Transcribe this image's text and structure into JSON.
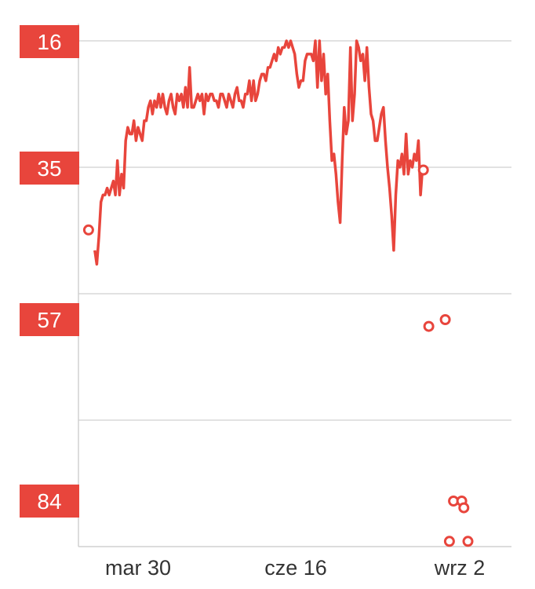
{
  "chart_data": {
    "type": "line",
    "title": "",
    "xlabel": "",
    "ylabel": "",
    "y_axis": {
      "inverted": true,
      "labels": [
        "16",
        "35",
        "57",
        "84"
      ]
    },
    "x_axis": {
      "labels": [
        "mar 30",
        "cze 16",
        "wrz 2"
      ]
    },
    "grid": true,
    "colors": {
      "line": "#e8453c",
      "label_bg": "#e8453c",
      "grid": "#d9d9d9"
    },
    "series": [
      {
        "style": "line-with-end-markers",
        "points": [
          [
            "2015-03-09",
            47
          ],
          [
            "2015-03-10",
            49
          ],
          [
            "2015-03-11",
            45
          ],
          [
            "2015-03-12",
            40
          ],
          [
            "2015-03-13",
            39
          ],
          [
            "2015-03-14",
            39
          ],
          [
            "2015-03-15",
            38
          ],
          [
            "2015-03-16",
            39
          ],
          [
            "2015-03-17",
            38
          ],
          [
            "2015-03-18",
            37
          ],
          [
            "2015-03-19",
            39
          ],
          [
            "2015-03-20",
            34
          ],
          [
            "2015-03-21",
            39
          ],
          [
            "2015-03-22",
            36
          ],
          [
            "2015-03-23",
            38
          ],
          [
            "2015-03-24",
            31
          ],
          [
            "2015-03-25",
            29
          ],
          [
            "2015-03-26",
            30
          ],
          [
            "2015-03-27",
            30
          ],
          [
            "2015-03-28",
            28
          ],
          [
            "2015-03-29",
            31
          ],
          [
            "2015-03-30",
            29
          ],
          [
            "2015-03-31",
            30
          ],
          [
            "2015-04-01",
            31
          ],
          [
            "2015-04-02",
            28
          ],
          [
            "2015-04-03",
            28
          ],
          [
            "2015-04-04",
            26
          ],
          [
            "2015-04-05",
            25
          ],
          [
            "2015-04-06",
            27
          ],
          [
            "2015-04-07",
            25
          ],
          [
            "2015-04-08",
            26
          ],
          [
            "2015-04-09",
            24
          ],
          [
            "2015-04-10",
            26
          ],
          [
            "2015-04-11",
            24
          ],
          [
            "2015-04-12",
            26
          ],
          [
            "2015-04-13",
            27
          ],
          [
            "2015-04-14",
            25
          ],
          [
            "2015-04-15",
            24
          ],
          [
            "2015-04-16",
            26
          ],
          [
            "2015-04-17",
            27
          ],
          [
            "2015-04-18",
            24
          ],
          [
            "2015-04-19",
            25
          ],
          [
            "2015-04-20",
            24
          ],
          [
            "2015-04-21",
            26
          ],
          [
            "2015-04-22",
            23
          ],
          [
            "2015-04-23",
            26
          ],
          [
            "2015-04-24",
            20
          ],
          [
            "2015-04-25",
            26
          ],
          [
            "2015-04-26",
            26
          ],
          [
            "2015-04-27",
            25
          ],
          [
            "2015-04-28",
            24
          ],
          [
            "2015-04-29",
            25
          ],
          [
            "2015-04-30",
            24
          ],
          [
            "2015-05-01",
            27
          ],
          [
            "2015-05-02",
            24
          ],
          [
            "2015-05-03",
            25
          ],
          [
            "2015-05-04",
            24
          ],
          [
            "2015-05-05",
            24
          ],
          [
            "2015-05-06",
            25
          ],
          [
            "2015-05-07",
            25
          ],
          [
            "2015-05-08",
            26
          ],
          [
            "2015-05-09",
            24
          ],
          [
            "2015-05-10",
            24
          ],
          [
            "2015-05-11",
            25
          ],
          [
            "2015-05-12",
            26
          ],
          [
            "2015-05-13",
            24
          ],
          [
            "2015-05-14",
            25
          ],
          [
            "2015-05-15",
            26
          ],
          [
            "2015-05-16",
            24
          ],
          [
            "2015-05-17",
            23
          ],
          [
            "2015-05-18",
            25
          ],
          [
            "2015-05-19",
            25
          ],
          [
            "2015-05-20",
            26
          ],
          [
            "2015-05-21",
            24
          ],
          [
            "2015-05-22",
            24
          ],
          [
            "2015-05-23",
            22
          ],
          [
            "2015-05-24",
            25
          ],
          [
            "2015-05-25",
            22
          ],
          [
            "2015-05-26",
            25
          ],
          [
            "2015-05-27",
            24
          ],
          [
            "2015-05-28",
            22
          ],
          [
            "2015-05-29",
            21
          ],
          [
            "2015-05-30",
            21
          ],
          [
            "2015-05-31",
            22
          ],
          [
            "2015-06-01",
            20
          ],
          [
            "2015-06-02",
            20
          ],
          [
            "2015-06-03",
            19
          ],
          [
            "2015-06-04",
            18
          ],
          [
            "2015-06-05",
            19
          ],
          [
            "2015-06-06",
            17
          ],
          [
            "2015-06-07",
            18
          ],
          [
            "2015-06-08",
            17
          ],
          [
            "2015-06-09",
            17
          ],
          [
            "2015-06-10",
            16
          ],
          [
            "2015-06-11",
            17
          ],
          [
            "2015-06-12",
            16
          ],
          [
            "2015-06-13",
            17
          ],
          [
            "2015-06-14",
            18
          ],
          [
            "2015-06-15",
            21
          ],
          [
            "2015-06-16",
            23
          ],
          [
            "2015-06-17",
            22
          ],
          [
            "2015-06-18",
            22
          ],
          [
            "2015-06-19",
            19
          ],
          [
            "2015-06-20",
            18
          ],
          [
            "2015-06-21",
            18
          ],
          [
            "2015-06-22",
            18
          ],
          [
            "2015-06-23",
            19
          ],
          [
            "2015-06-24",
            16
          ],
          [
            "2015-06-25",
            23
          ],
          [
            "2015-06-26",
            16
          ],
          [
            "2015-06-27",
            22
          ],
          [
            "2015-06-28",
            18
          ],
          [
            "2015-06-29",
            24
          ],
          [
            "2015-06-30",
            21
          ],
          [
            "2015-07-01",
            28
          ],
          [
            "2015-07-02",
            34
          ],
          [
            "2015-07-03",
            33
          ],
          [
            "2015-07-04",
            36
          ],
          [
            "2015-07-05",
            40
          ],
          [
            "2015-07-06",
            43
          ],
          [
            "2015-07-07",
            34
          ],
          [
            "2015-07-08",
            26
          ],
          [
            "2015-07-09",
            30
          ],
          [
            "2015-07-10",
            28
          ],
          [
            "2015-07-11",
            17
          ],
          [
            "2015-07-12",
            28
          ],
          [
            "2015-07-13",
            24
          ],
          [
            "2015-07-14",
            16
          ],
          [
            "2015-07-15",
            17
          ],
          [
            "2015-07-16",
            19
          ],
          [
            "2015-07-17",
            18
          ],
          [
            "2015-07-18",
            22
          ],
          [
            "2015-07-19",
            17
          ],
          [
            "2015-07-20",
            23
          ],
          [
            "2015-07-21",
            27
          ],
          [
            "2015-07-22",
            28
          ],
          [
            "2015-07-23",
            31
          ],
          [
            "2015-07-24",
            31
          ],
          [
            "2015-07-25",
            29
          ],
          [
            "2015-07-26",
            27
          ],
          [
            "2015-07-27",
            26
          ],
          [
            "2015-07-28",
            31
          ],
          [
            "2015-07-29",
            35
          ],
          [
            "2015-07-30",
            38
          ],
          [
            "2015-07-31",
            42
          ],
          [
            "2015-08-01",
            47
          ],
          [
            "2015-08-02",
            39
          ],
          [
            "2015-08-03",
            34
          ],
          [
            "2015-08-04",
            35
          ],
          [
            "2015-08-05",
            33
          ],
          [
            "2015-08-06",
            36
          ],
          [
            "2015-08-07",
            30
          ],
          [
            "2015-08-08",
            36
          ],
          [
            "2015-08-09",
            34
          ],
          [
            "2015-08-10",
            35
          ],
          [
            "2015-08-11",
            33
          ],
          [
            "2015-08-12",
            34
          ],
          [
            "2015-08-13",
            31
          ],
          [
            "2015-08-14",
            39
          ],
          [
            "2015-08-15",
            35
          ]
        ]
      },
      {
        "style": "markers-only",
        "points": [
          [
            "2015-08-18",
            58
          ],
          [
            "2015-08-26",
            57
          ],
          [
            "2015-08-30",
            84
          ],
          [
            "2015-09-03",
            84
          ],
          [
            "2015-09-04",
            85
          ],
          [
            "2015-08-28",
            90
          ],
          [
            "2015-09-06",
            90
          ]
        ]
      }
    ]
  }
}
